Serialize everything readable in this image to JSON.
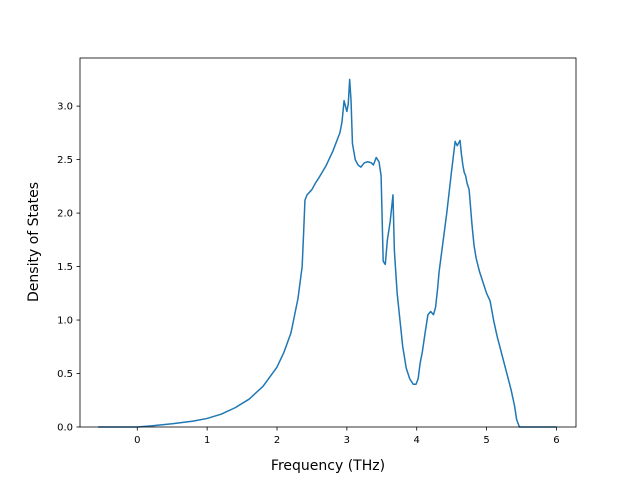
{
  "chart_data": {
    "type": "line",
    "title": "",
    "xlabel": "Frequency (THz)",
    "ylabel": "Density of States",
    "xlim": [
      -0.82,
      6.28
    ],
    "ylim": [
      0.0,
      3.45
    ],
    "xticks": [
      0,
      1,
      2,
      3,
      4,
      5,
      6
    ],
    "xtick_labels": [
      "0",
      "1",
      "2",
      "3",
      "4",
      "5",
      "6"
    ],
    "yticks": [
      0.0,
      0.5,
      1.0,
      1.5,
      2.0,
      2.5,
      3.0
    ],
    "ytick_labels": [
      "0.0",
      "0.5",
      "1.0",
      "1.5",
      "2.0",
      "2.5",
      "3.0"
    ],
    "grid": false,
    "line_color": "#1f77b4",
    "series": [
      {
        "x": [
          -0.56,
          0.0,
          0.2,
          0.5,
          0.8,
          1.0,
          1.2,
          1.4,
          1.6,
          1.8,
          2.0,
          2.1,
          2.2,
          2.3,
          2.36,
          2.38,
          2.4,
          2.43,
          2.5,
          2.55,
          2.6,
          2.7,
          2.8,
          2.9,
          2.93,
          2.96,
          3.0,
          3.02,
          3.04,
          3.06,
          3.08,
          3.12,
          3.16,
          3.2,
          3.25,
          3.3,
          3.35,
          3.38,
          3.42,
          3.46,
          3.49,
          3.52,
          3.55,
          3.58,
          3.62,
          3.66,
          3.68,
          3.7,
          3.72,
          3.76,
          3.8,
          3.85,
          3.9,
          3.95,
          3.99,
          4.02,
          4.05,
          4.08,
          4.12,
          4.16,
          4.2,
          4.24,
          4.27,
          4.3,
          4.32,
          4.35,
          4.38,
          4.43,
          4.5,
          4.55,
          4.58,
          4.62,
          4.64,
          4.66,
          4.68,
          4.7,
          4.72,
          4.75,
          4.79,
          4.82,
          4.85,
          4.9,
          4.95,
          5.0,
          5.05,
          5.1,
          5.15,
          5.25,
          5.35,
          5.4,
          5.43,
          5.47,
          5.6,
          5.8,
          6.0
        ],
        "y": [
          0.0,
          0.0,
          0.01,
          0.03,
          0.055,
          0.08,
          0.12,
          0.18,
          0.26,
          0.38,
          0.56,
          0.7,
          0.88,
          1.2,
          1.5,
          1.8,
          2.12,
          2.17,
          2.22,
          2.28,
          2.33,
          2.44,
          2.58,
          2.75,
          2.85,
          3.05,
          2.95,
          3.02,
          3.25,
          3.05,
          2.65,
          2.5,
          2.45,
          2.43,
          2.47,
          2.48,
          2.47,
          2.45,
          2.52,
          2.48,
          2.35,
          1.55,
          1.52,
          1.75,
          1.92,
          2.17,
          1.65,
          1.45,
          1.25,
          1.0,
          0.75,
          0.55,
          0.45,
          0.4,
          0.4,
          0.45,
          0.6,
          0.7,
          0.88,
          1.05,
          1.08,
          1.05,
          1.12,
          1.3,
          1.45,
          1.6,
          1.75,
          2.0,
          2.4,
          2.67,
          2.63,
          2.68,
          2.55,
          2.45,
          2.38,
          2.35,
          2.28,
          2.22,
          1.9,
          1.7,
          1.58,
          1.45,
          1.35,
          1.25,
          1.18,
          1.0,
          0.85,
          0.6,
          0.35,
          0.2,
          0.07,
          0.0,
          0.0,
          0.0,
          0.0
        ]
      }
    ]
  }
}
